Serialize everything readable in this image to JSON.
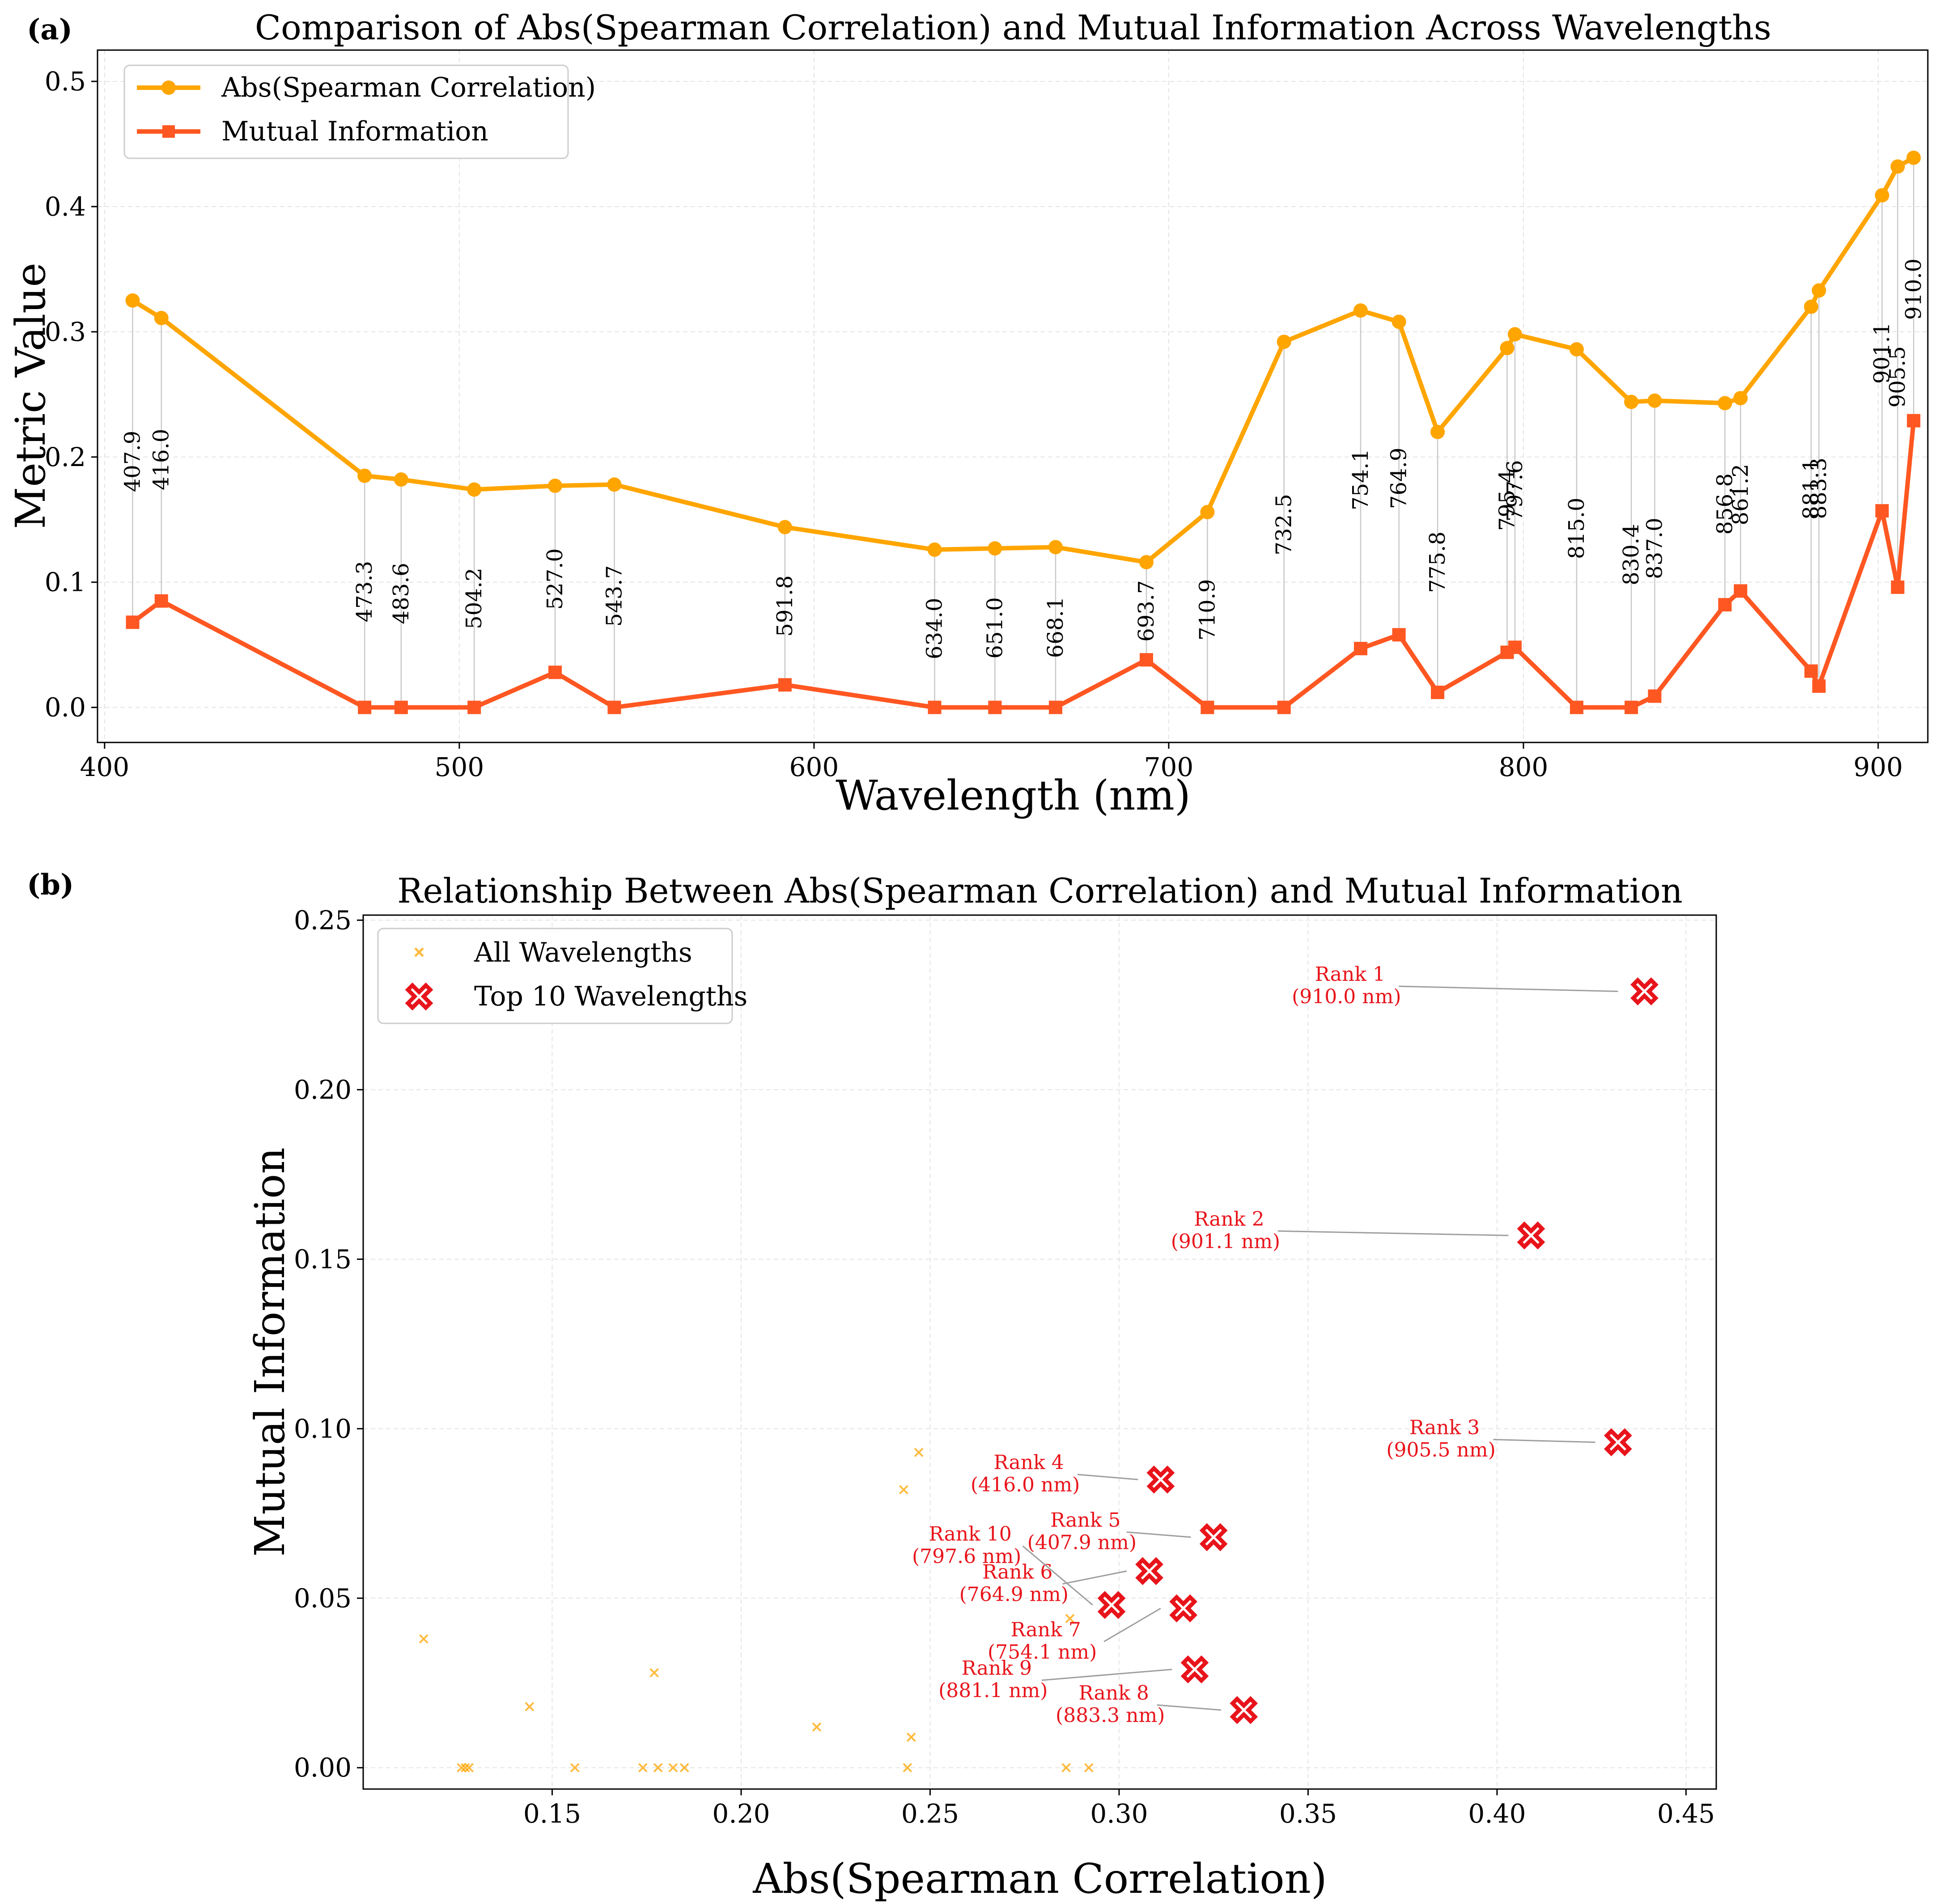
{
  "chart_data": [
    {
      "panel_label": "(a)",
      "type": "line",
      "title": "Comparison of Abs(Spearman Correlation) and Mutual Information Across Wavelengths",
      "xlabel": "Wavelength (nm)",
      "ylabel": "Metric Value",
      "xlim": [
        398,
        914
      ],
      "ylim": [
        -0.028,
        0.525
      ],
      "xticks": [
        400,
        500,
        600,
        700,
        800,
        900
      ],
      "yticks": [
        0.0,
        0.1,
        0.2,
        0.3,
        0.4,
        0.5
      ],
      "grid": true,
      "legend_position": "top-left",
      "x": [
        407.9,
        416.0,
        473.3,
        483.6,
        504.2,
        527.0,
        543.7,
        591.8,
        634.0,
        651.0,
        668.1,
        693.7,
        710.9,
        732.5,
        754.1,
        764.9,
        775.8,
        795.4,
        797.6,
        815.0,
        830.4,
        837.0,
        856.8,
        861.2,
        881.1,
        883.3,
        901.1,
        905.5,
        910.0
      ],
      "wavelength_labels": [
        "407.9",
        "416.0",
        "473.3",
        "483.6",
        "504.2",
        "527.0",
        "543.7",
        "591.8",
        "634.0",
        "651.0",
        "668.1",
        "693.7",
        "710.9",
        "732.5",
        "754.1",
        "764.9",
        "775.8",
        "795.4",
        "797.6",
        "815.0",
        "830.4",
        "837.0",
        "856.8",
        "861.2",
        "881.1",
        "883.3",
        "901.1",
        "905.5",
        "910.0"
      ],
      "series": [
        {
          "name": "Abs(Spearman Correlation)",
          "color": "#FFA500",
          "marker": "circle",
          "values": [
            0.325,
            0.311,
            0.185,
            0.182,
            0.174,
            0.177,
            0.178,
            0.144,
            0.126,
            0.127,
            0.128,
            0.116,
            0.156,
            0.292,
            0.317,
            0.308,
            0.22,
            0.287,
            0.298,
            0.286,
            0.244,
            0.245,
            0.243,
            0.247,
            0.32,
            0.333,
            0.409,
            0.432,
            0.439
          ]
        },
        {
          "name": "Mutual Information",
          "color": "#FF5722",
          "marker": "square",
          "values": [
            0.068,
            0.085,
            0.0,
            0.0,
            0.0,
            0.028,
            0.0,
            0.018,
            0.0,
            0.0,
            0.0,
            0.038,
            0.0,
            0.0,
            0.047,
            0.058,
            0.012,
            0.044,
            0.048,
            0.0,
            0.0,
            0.009,
            0.082,
            0.093,
            0.029,
            0.017,
            0.157,
            0.096,
            0.229
          ]
        }
      ]
    },
    {
      "panel_label": "(b)",
      "type": "scatter",
      "title": "Relationship Between Abs(Spearman Correlation) and Mutual Information",
      "xlabel": "Abs(Spearman Correlation)",
      "ylabel": "Mutual Information",
      "xlim": [
        0.1,
        0.458
      ],
      "ylim": [
        -0.0063,
        0.2515
      ],
      "xticks": [
        0.15,
        0.2,
        0.25,
        0.3,
        0.35,
        0.4,
        0.45
      ],
      "yticks": [
        0.0,
        0.05,
        0.1,
        0.15,
        0.2,
        0.25
      ],
      "grid": true,
      "legend_position": "top-left",
      "series": [
        {
          "name": "All Wavelengths",
          "color": "#FFA500",
          "marker": "x",
          "points": [
            [
              0.325,
              0.068
            ],
            [
              0.311,
              0.085
            ],
            [
              0.185,
              0.0
            ],
            [
              0.182,
              0.0
            ],
            [
              0.174,
              0.0
            ],
            [
              0.177,
              0.028
            ],
            [
              0.178,
              0.0
            ],
            [
              0.144,
              0.018
            ],
            [
              0.126,
              0.0
            ],
            [
              0.127,
              0.0
            ],
            [
              0.128,
              0.0
            ],
            [
              0.116,
              0.038
            ],
            [
              0.156,
              0.0
            ],
            [
              0.292,
              0.0
            ],
            [
              0.317,
              0.047
            ],
            [
              0.308,
              0.058
            ],
            [
              0.22,
              0.012
            ],
            [
              0.287,
              0.044
            ],
            [
              0.298,
              0.048
            ],
            [
              0.286,
              0.0
            ],
            [
              0.244,
              0.0
            ],
            [
              0.245,
              0.009
            ],
            [
              0.243,
              0.082
            ],
            [
              0.247,
              0.093
            ],
            [
              0.32,
              0.029
            ],
            [
              0.333,
              0.017
            ],
            [
              0.409,
              0.157
            ],
            [
              0.432,
              0.096
            ],
            [
              0.439,
              0.229
            ]
          ]
        },
        {
          "name": "Top 10 Wavelengths",
          "color": "#E8141B",
          "marker": "X",
          "points": [
            {
              "x": 0.439,
              "y": 0.229,
              "rank": "Rank 1",
              "wl": "(910.0 nm)",
              "lx": 0.372,
              "ly": 0.2305,
              "ha": "end",
              "l1": 0.374,
              "l2": 0.432
            },
            {
              "x": 0.409,
              "y": 0.157,
              "rank": "Rank 2",
              "wl": "(901.1 nm)",
              "lx": 0.34,
              "ly": 0.1583,
              "ha": "end",
              "l1": 0.342,
              "l2": 0.403
            },
            {
              "x": 0.432,
              "y": 0.096,
              "rank": "Rank 3",
              "wl": "(905.5 nm)",
              "lx": 0.397,
              "ly": 0.0968,
              "ha": "end",
              "l1": 0.399,
              "l2": 0.426
            },
            {
              "x": 0.311,
              "y": 0.085,
              "rank": "Rank 4",
              "wl": "(416.0 nm)",
              "lx": 0.287,
              "ly": 0.0865,
              "ha": "end",
              "l1": 0.289,
              "l2": 0.305
            },
            {
              "x": 0.325,
              "y": 0.068,
              "rank": "Rank 5",
              "wl": "(407.9 nm)",
              "lx": 0.302,
              "ly": 0.0695,
              "ha": "end",
              "l1": 0.302,
              "l2": 0.319
            },
            {
              "x": 0.308,
              "y": 0.058,
              "rank": "Rank 6",
              "wl": "(764.9 nm)",
              "lx": 0.284,
              "ly": 0.0542,
              "ha": "end",
              "l1": 0.285,
              "l2": 0.302
            },
            {
              "x": 0.317,
              "y": 0.047,
              "rank": "Rank 7",
              "wl": "(754.1 nm)",
              "lx": 0.2915,
              "ly": 0.0372,
              "ha": "end",
              "l1": 0.296,
              "l2": 0.311
            },
            {
              "x": 0.333,
              "y": 0.017,
              "rank": "Rank 8",
              "wl": "(883.3 nm)",
              "lx": 0.3095,
              "ly": 0.0185,
              "ha": "end",
              "l1": 0.31,
              "l2": 0.327
            },
            {
              "x": 0.32,
              "y": 0.029,
              "rank": "Rank 9",
              "wl": "(881.1 nm)",
              "lx": 0.2785,
              "ly": 0.0258,
              "ha": "end",
              "l1": 0.2795,
              "l2": 0.314
            },
            {
              "x": 0.298,
              "y": 0.048,
              "rank": "Rank 10",
              "wl": "(797.6 nm)",
              "lx": 0.2715,
              "ly": 0.0654,
              "ha": "end",
              "l1": 0.2745,
              "l2": 0.293
            }
          ]
        }
      ]
    }
  ]
}
